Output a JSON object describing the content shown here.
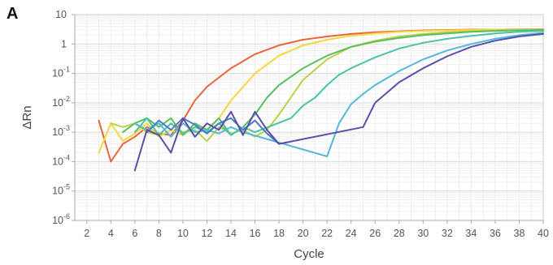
{
  "panel_label": "A",
  "chart_data": {
    "type": "line",
    "title": "",
    "xlabel": "Cycle",
    "ylabel": "ΔRn",
    "xlim": [
      1,
      40
    ],
    "ylim": [
      1e-06,
      10
    ],
    "y_scale": "log",
    "grid": true,
    "x_ticks": [
      2,
      4,
      6,
      8,
      10,
      12,
      14,
      16,
      18,
      20,
      22,
      24,
      26,
      28,
      30,
      32,
      34,
      36,
      38,
      40
    ],
    "y_ticks": [
      {
        "value": 10,
        "base": "10",
        "exp": ""
      },
      {
        "value": 1,
        "base": "1",
        "exp": ""
      },
      {
        "value": 0.1,
        "base": "10",
        "exp": "-1"
      },
      {
        "value": 0.01,
        "base": "10",
        "exp": "-2"
      },
      {
        "value": 0.001,
        "base": "10",
        "exp": "-3"
      },
      {
        "value": 0.0001,
        "base": "10",
        "exp": "-4"
      },
      {
        "value": 1e-05,
        "base": "10",
        "exp": "-5"
      },
      {
        "value": 1e-06,
        "base": "10",
        "exp": "-6"
      }
    ],
    "series": [
      {
        "color": "#e8663c",
        "x": [
          3,
          4,
          5,
          6,
          7,
          8,
          9,
          10,
          11,
          12,
          14,
          16,
          18,
          20,
          22,
          24,
          26,
          28,
          30,
          32,
          34,
          36,
          38,
          40
        ],
        "y": [
          0.0025,
          0.0001,
          0.0004,
          0.0007,
          0.0015,
          0.0009,
          0.0008,
          0.0025,
          0.012,
          0.035,
          0.15,
          0.45,
          0.9,
          1.4,
          1.8,
          2.2,
          2.5,
          2.7,
          2.9,
          3.0,
          3.1,
          3.1,
          3.15,
          3.2
        ]
      },
      {
        "color": "#f5d63c",
        "x": [
          3,
          4,
          5,
          6,
          7,
          8,
          9,
          10,
          11,
          12,
          13,
          14,
          16,
          18,
          20,
          22,
          24,
          26,
          28,
          30,
          32,
          34,
          36,
          38,
          40
        ],
        "y": [
          0.0002,
          0.002,
          0.0005,
          0.0009,
          0.002,
          0.0007,
          0.0012,
          0.0008,
          0.0015,
          0.0012,
          0.003,
          0.012,
          0.1,
          0.4,
          0.9,
          1.4,
          1.9,
          2.3,
          2.6,
          2.8,
          2.9,
          3.0,
          3.1,
          3.1,
          3.1
        ]
      },
      {
        "color": "#b8d24a",
        "x": [
          4,
          5,
          6,
          7,
          8,
          9,
          10,
          11,
          12,
          13,
          14,
          15,
          16,
          17,
          18,
          20,
          22,
          24,
          26,
          28,
          30,
          32,
          34,
          36,
          38,
          40
        ],
        "y": [
          0.002,
          0.0015,
          0.002,
          0.001,
          0.0008,
          0.002,
          0.001,
          0.0012,
          0.0005,
          0.0015,
          0.0009,
          0.0012,
          0.0007,
          0.0012,
          0.004,
          0.06,
          0.3,
          0.8,
          1.3,
          1.8,
          2.2,
          2.5,
          2.7,
          2.9,
          3.0,
          3.0
        ]
      },
      {
        "color": "#5cbf5e",
        "x": [
          5,
          6,
          7,
          8,
          9,
          10,
          11,
          12,
          13,
          14,
          15,
          16,
          17,
          18,
          20,
          22,
          24,
          26,
          28,
          30,
          32,
          34,
          36,
          38,
          40
        ],
        "y": [
          0.001,
          0.002,
          0.003,
          0.0015,
          0.003,
          0.0008,
          0.002,
          0.0012,
          0.003,
          0.0008,
          0.0015,
          0.004,
          0.015,
          0.04,
          0.15,
          0.4,
          0.8,
          1.2,
          1.6,
          2.0,
          2.3,
          2.6,
          2.8,
          2.9,
          3.0
        ]
      },
      {
        "color": "#4cc3a8",
        "x": [
          6,
          7,
          8,
          9,
          10,
          11,
          12,
          13,
          14,
          15,
          16,
          19,
          20,
          21,
          22,
          23,
          24,
          26,
          28,
          30,
          32,
          34,
          36,
          38,
          40
        ],
        "y": [
          0.001,
          0.003,
          0.0008,
          0.002,
          0.0009,
          0.0015,
          0.001,
          0.002,
          0.0008,
          0.0015,
          0.001,
          0.003,
          0.008,
          0.015,
          0.04,
          0.09,
          0.15,
          0.35,
          0.7,
          1.1,
          1.5,
          1.9,
          2.3,
          2.6,
          2.8
        ]
      },
      {
        "color": "#52b9d8",
        "x": [
          6,
          7,
          8,
          9,
          10,
          11,
          12,
          13,
          14,
          15,
          22,
          23,
          24,
          25,
          26,
          28,
          30,
          32,
          34,
          36,
          38,
          40
        ],
        "y": [
          0.002,
          0.0012,
          0.002,
          0.0007,
          0.002,
          0.001,
          0.0012,
          0.0009,
          0.0015,
          0.001,
          0.00015,
          0.002,
          0.009,
          0.02,
          0.04,
          0.12,
          0.3,
          0.6,
          1.0,
          1.5,
          2.0,
          2.4
        ]
      },
      {
        "color": "#4a7ec4",
        "x": [
          7,
          8,
          9,
          10,
          11,
          12,
          13,
          14,
          15,
          16,
          17,
          18
        ],
        "y": [
          0.001,
          0.0025,
          0.0012,
          0.003,
          0.0018,
          0.0009,
          0.002,
          0.003,
          0.0012,
          0.0025,
          0.0009,
          0.0004
        ]
      },
      {
        "color": "#5a4fa8",
        "x": [
          6,
          7,
          8,
          9,
          10,
          11,
          12,
          13,
          14,
          15,
          16,
          17,
          18,
          25,
          26,
          28,
          30,
          32,
          34,
          36,
          38,
          40
        ],
        "y": [
          5e-05,
          0.0012,
          0.0008,
          0.0002,
          0.003,
          0.0007,
          0.002,
          0.0012,
          0.005,
          0.0008,
          0.005,
          0.0012,
          0.0004,
          0.0015,
          0.01,
          0.05,
          0.15,
          0.38,
          0.8,
          1.3,
          1.8,
          2.2
        ]
      }
    ]
  }
}
